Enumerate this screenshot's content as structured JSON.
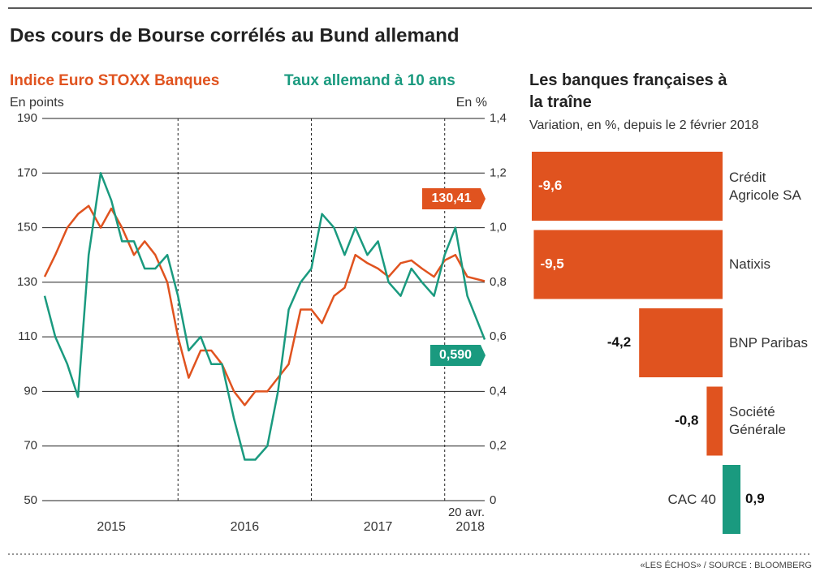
{
  "title": "Des cours de Bourse corrélés au Bund allemand",
  "source": "«LES ÉCHOS» / SOURCE : BLOOMBERG",
  "chart_data": [
    {
      "type": "line",
      "y_label": "En points",
      "y2_label": "En %",
      "x": [
        2015.0,
        2015.08,
        2015.17,
        2015.25,
        2015.33,
        2015.42,
        2015.5,
        2015.58,
        2015.67,
        2015.75,
        2015.83,
        2015.92,
        2016.0,
        2016.08,
        2016.17,
        2016.25,
        2016.33,
        2016.42,
        2016.5,
        2016.58,
        2016.67,
        2016.75,
        2016.83,
        2016.92,
        2017.0,
        2017.08,
        2017.17,
        2017.25,
        2017.33,
        2017.42,
        2017.5,
        2017.58,
        2017.67,
        2017.75,
        2017.83,
        2017.92,
        2018.0,
        2018.08,
        2018.17,
        2018.3
      ],
      "xlim": [
        2015,
        2018.3
      ],
      "xticks": [
        {
          "value": 2015.5,
          "label": "2015"
        },
        {
          "value": 2016.5,
          "label": "2016"
        },
        {
          "value": 2017.5,
          "label": "2017"
        },
        {
          "value": 2018.3,
          "label": "2018"
        }
      ],
      "x_annotation": "20 avr.",
      "x_dividers": [
        2016,
        2017,
        2018
      ],
      "ylim": [
        50,
        190
      ],
      "yticks": [
        50,
        70,
        90,
        110,
        130,
        150,
        170,
        190
      ],
      "y2lim": [
        0,
        1.4
      ],
      "y2ticks": [
        0,
        {
          "value": 0.2,
          "label": "0,2"
        },
        {
          "value": 0.4,
          "label": "0,4"
        },
        {
          "value": 0.6,
          "label": "0,6"
        },
        {
          "value": 0.8,
          "label": "0,8"
        },
        {
          "value": 1.0,
          "label": "1,0"
        },
        {
          "value": 1.2,
          "label": "1,2"
        },
        {
          "value": 1.4,
          "label": "1,4"
        }
      ],
      "grid": true,
      "series": [
        {
          "name": "Indice Euro STOXX Banques",
          "color": "#e0531f",
          "end_label": "130,41",
          "values": [
            132,
            140,
            150,
            155,
            158,
            150,
            157,
            150,
            140,
            145,
            140,
            130,
            110,
            95,
            105,
            105,
            100,
            90,
            85,
            90,
            90,
            95,
            100,
            120,
            120,
            115,
            125,
            128,
            140,
            137,
            135,
            132,
            137,
            138,
            135,
            132,
            138,
            140,
            132,
            130.41
          ]
        },
        {
          "name": "Taux allemand à 10 ans",
          "color": "#1a9a7f",
          "axis": "y2",
          "end_label": "0,590",
          "values": [
            0.75,
            0.6,
            0.5,
            0.38,
            0.9,
            1.2,
            1.1,
            0.95,
            0.95,
            0.85,
            0.85,
            0.9,
            0.75,
            0.55,
            0.6,
            0.5,
            0.5,
            0.3,
            0.15,
            0.15,
            0.2,
            0.4,
            0.7,
            0.8,
            0.85,
            1.05,
            1.0,
            0.9,
            1.0,
            0.9,
            0.95,
            0.8,
            0.75,
            0.85,
            0.8,
            0.75,
            0.9,
            1.0,
            0.75,
            0.59
          ]
        }
      ]
    },
    {
      "type": "bar",
      "orientation": "horizontal",
      "title": "Les banques françaises à la traîne",
      "subtitle": "Variation, en %, depuis le 2 février 2018",
      "categories": [
        "Crédit Agricole SA",
        "Natixis",
        "BNP Paribas",
        "Société Générale",
        "CAC 40"
      ],
      "values": [
        -9.6,
        -9.5,
        -4.2,
        -0.8,
        0.9
      ],
      "value_labels": [
        "-9,6",
        "-9,5",
        "-4,2",
        "-0,8",
        "0,9"
      ],
      "colors": [
        "#e0531f",
        "#e0531f",
        "#e0531f",
        "#e0531f",
        "#1a9a7f"
      ]
    }
  ]
}
